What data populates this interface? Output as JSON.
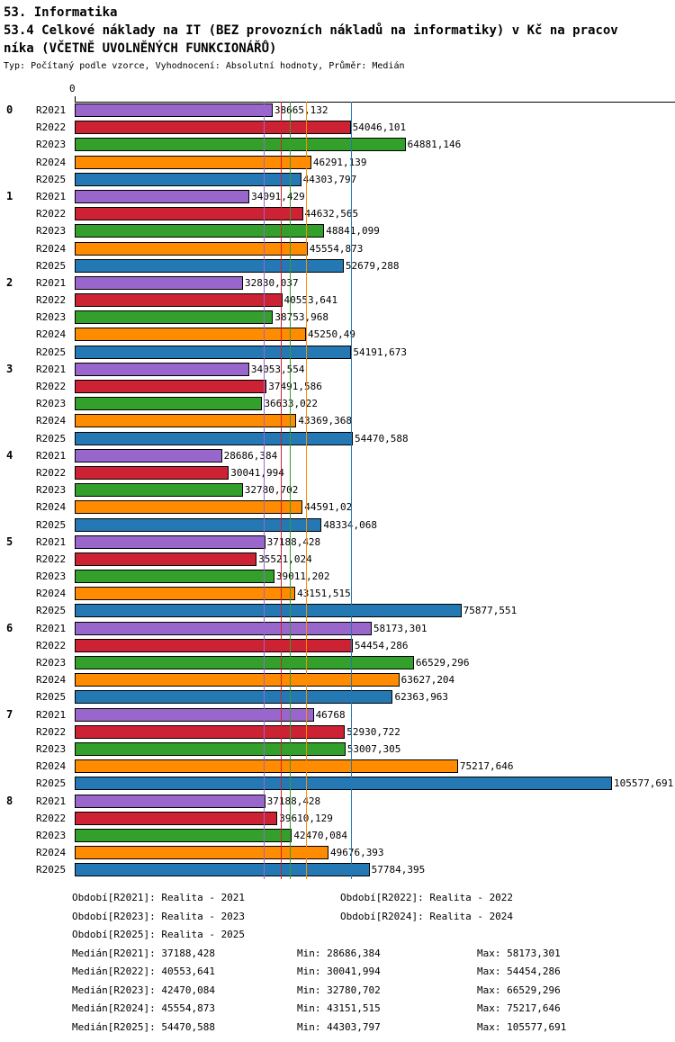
{
  "header": {
    "title1": "53. Informatika",
    "title2": "53.4 Celkové náklady na IT (BEZ provozních nákladů na informatiky) v Kč na pracov",
    "title3": "níka (VČETNĚ UVOLNĚNÝCH FUNKCIONÁŘŮ)",
    "subtitle": "Typ: Počítaný podle vzorce, Vyhodnocení: Absolutní hodnoty, Průměr: Medián"
  },
  "chart_data": {
    "type": "bar",
    "orientation": "horizontal",
    "title": "53.4 Celkové náklady na IT (BEZ provozních nákladů na informatiky) v Kč na pracovníka (VČETNĚ UVOLNĚNÝCH FUNKCIONÁŘŮ)",
    "xlabel": "",
    "ylabel": "",
    "xlim": [
      0,
      117000
    ],
    "grid": false,
    "legend_position": "bottom",
    "axis": {
      "zero_label": "0"
    },
    "categories": [
      "0",
      "1",
      "2",
      "3",
      "4",
      "5",
      "6",
      "7",
      "8"
    ],
    "series": [
      {
        "name": "R2021",
        "color": "#9966CC",
        "median": 37188.428,
        "values": [
          38665.132,
          34091.429,
          32830.037,
          34053.554,
          28686.384,
          37188.428,
          58173.301,
          46768,
          37188.428
        ],
        "labels": [
          "38665,132",
          "34091,429",
          "32830,037",
          "34053,554",
          "28686,384",
          "37188,428",
          "58173,301",
          "46768",
          "37188,428"
        ]
      },
      {
        "name": "R2022",
        "color": "#CC2233",
        "median": 40553.641,
        "values": [
          54046.101,
          44632.565,
          40553.641,
          37491.586,
          30041.994,
          35521.024,
          54454.286,
          52930.722,
          39610.129
        ],
        "labels": [
          "54046,101",
          "44632,565",
          "40553,641",
          "37491,586",
          "30041,994",
          "35521,024",
          "54454,286",
          "52930,722",
          "39610,129"
        ]
      },
      {
        "name": "R2023",
        "color": "#33A02C",
        "median": 42470.084,
        "values": [
          64881.146,
          48841.099,
          38753.968,
          36633.022,
          32780.702,
          39011.202,
          66529.296,
          53007.305,
          42470.084
        ],
        "labels": [
          "64881,146",
          "48841,099",
          "38753,968",
          "36633,022",
          "32780,702",
          "39011,202",
          "66529,296",
          "53007,305",
          "42470,084"
        ]
      },
      {
        "name": "R2024",
        "color": "#FF8C00",
        "median": 45554.873,
        "values": [
          46291.139,
          45554.873,
          45250.49,
          43369.368,
          44591.02,
          43151.515,
          63627.204,
          75217.646,
          49676.393
        ],
        "labels": [
          "46291,139",
          "45554,873",
          "45250,49",
          "43369,368",
          "44591,02",
          "43151,515",
          "63627,204",
          "75217,646",
          "49676,393"
        ]
      },
      {
        "name": "R2025",
        "color": "#2478B4",
        "median": 54470.588,
        "values": [
          44303.797,
          52679.288,
          54191.673,
          54470.588,
          48334.068,
          75877.551,
          62363.963,
          105577.691,
          57784.395
        ],
        "labels": [
          "44303,797",
          "52679,288",
          "54191,673",
          "54470,588",
          "48334,068",
          "75877,551",
          "62363,963",
          "105577,691",
          "57784,395"
        ]
      }
    ]
  },
  "legend": {
    "rows": [
      {
        "col1": "Období[R2021]: Realita - 2021",
        "col2": "Období[R2022]: Realita - 2022"
      },
      {
        "col1": "Období[R2023]: Realita - 2023",
        "col2": "Období[R2024]: Realita - 2024"
      },
      {
        "col1": "Období[R2025]: Realita - 2025",
        "col2": ""
      }
    ]
  },
  "stats": {
    "rows": [
      {
        "median": "Medián[R2021]: 37188,428",
        "min": "Min: 28686,384",
        "max": "Max: 58173,301"
      },
      {
        "median": "Medián[R2022]: 40553,641",
        "min": "Min: 30041,994",
        "max": "Max: 54454,286"
      },
      {
        "median": "Medián[R2023]: 42470,084",
        "min": "Min: 32780,702",
        "max": "Max: 66529,296"
      },
      {
        "median": "Medián[R2024]: 45554,873",
        "min": "Min: 43151,515",
        "max": "Max: 75217,646"
      },
      {
        "median": "Medián[R2025]: 54470,588",
        "min": "Min: 44303,797",
        "max": "Max: 105577,691"
      }
    ]
  }
}
